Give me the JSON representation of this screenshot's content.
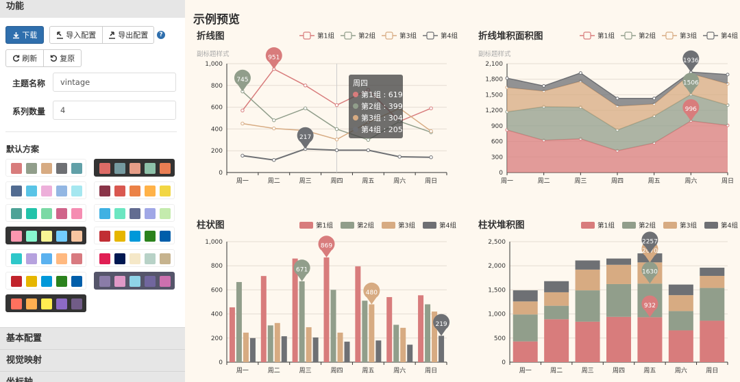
{
  "sidebar": {
    "sections": {
      "func": "功能",
      "basic": "基本配置",
      "visual": "视觉映射",
      "axis": "坐标轴"
    },
    "buttons": {
      "download": "下载",
      "import": "导入配置",
      "export": "导出配置",
      "refresh": "刷新",
      "restore": "复原",
      "help": "?"
    },
    "fields": {
      "theme_name_label": "主题名称",
      "theme_name_value": "vintage",
      "series_count_label": "系列数量",
      "series_count_value": "4"
    },
    "schemes_title": "默认方案",
    "schemes": [
      {
        "style": "light",
        "colors": [
          "#d87c7c",
          "#919e8b",
          "#d7ab82",
          "#6e7074",
          "#61a0a8"
        ]
      },
      {
        "style": "dark",
        "colors": [
          "#dd6b66",
          "#759aa0",
          "#e69d87",
          "#8dc1a9",
          "#ea7e53"
        ]
      },
      {
        "style": "light",
        "colors": [
          "#516b91",
          "#59c4e6",
          "#edafda",
          "#93b7e3",
          "#a5e7f0"
        ]
      },
      {
        "style": "light",
        "colors": [
          "#893448",
          "#d95850",
          "#eb8146",
          "#ffb248",
          "#f2d643"
        ]
      },
      {
        "style": "light",
        "colors": [
          "#4ea397",
          "#22c3aa",
          "#7bd9a5",
          "#d0648a",
          "#f58db2"
        ]
      },
      {
        "style": "light",
        "colors": [
          "#3fb1e3",
          "#6be6c1",
          "#626c91",
          "#a0a7e6",
          "#c4ebad"
        ]
      },
      {
        "style": "dark",
        "colors": [
          "#fc97af",
          "#87f7cf",
          "#f7f494",
          "#72ccff",
          "#f7c5a0"
        ]
      },
      {
        "style": "light",
        "colors": [
          "#c12e34",
          "#e6b600",
          "#0098d9",
          "#2b821d",
          "#005eaa"
        ]
      },
      {
        "style": "light",
        "colors": [
          "#2ec7c9",
          "#b6a2de",
          "#5ab1ef",
          "#ffb980",
          "#d87a80"
        ]
      },
      {
        "style": "light",
        "colors": [
          "#e01f54",
          "#001852",
          "#f5e8c8",
          "#b8d2c7",
          "#c6b38e"
        ]
      },
      {
        "style": "light",
        "colors": [
          "#c1232b",
          "#e6b600",
          "#0098d9",
          "#2b821d",
          "#005eaa"
        ]
      },
      {
        "style": "selected",
        "colors": [
          "#8a7ca8",
          "#e098c7",
          "#8fd3e8",
          "#71669e",
          "#cc70af"
        ]
      },
      {
        "style": "dark",
        "colors": [
          "#ff715e",
          "#ffaf51",
          "#ffee51",
          "#8c6ac4",
          "#715c87"
        ]
      }
    ]
  },
  "main": {
    "title": "示例预览"
  },
  "colors": {
    "s1": "#d87c7c",
    "s2": "#919e8b",
    "s3": "#d7ab82",
    "s4": "#6e7074"
  },
  "legend": [
    "第1组",
    "第2组",
    "第3组",
    "第4组"
  ],
  "tooltip": {
    "title": "周四",
    "rows": [
      {
        "label": "第1组 : 619",
        "color": "#d87c7c"
      },
      {
        "label": "第2组 : 399",
        "color": "#919e8b"
      },
      {
        "label": "第3组 : 304",
        "color": "#d7ab82"
      },
      {
        "label": "第4组 : 205",
        "color": "#6e7074"
      }
    ]
  },
  "chart_data": [
    {
      "id": "line",
      "type": "line",
      "title": "折线图",
      "subtitle": "副标题样式",
      "categories": [
        "周一",
        "周二",
        "周三",
        "周四",
        "周五",
        "周六",
        "周日"
      ],
      "ylim": [
        0,
        1000
      ],
      "yticks": [
        "0",
        "200",
        "400",
        "600",
        "800",
        "1,000"
      ],
      "series": [
        {
          "name": "第1组",
          "values": [
            570,
            951,
            800,
            619,
            760,
            470,
            590
          ]
        },
        {
          "name": "第2组",
          "values": [
            745,
            480,
            590,
            399,
            300,
            470,
            370
          ]
        },
        {
          "name": "第3组",
          "values": [
            450,
            405,
            385,
            304,
            460,
            590,
            380
          ]
        },
        {
          "name": "第4组",
          "values": [
            155,
            115,
            217,
            205,
            205,
            145,
            140
          ]
        }
      ],
      "markers": [
        {
          "label": "951",
          "series": 0,
          "index": 1
        },
        {
          "label": "745",
          "series": 1,
          "index": 0
        },
        {
          "label": "217",
          "series": 3,
          "index": 2
        }
      ]
    },
    {
      "id": "area",
      "type": "area",
      "title": "折线堆积面积图",
      "subtitle": "副标题样式",
      "categories": [
        "周一",
        "周二",
        "周三",
        "周四",
        "周五",
        "周六",
        "周日"
      ],
      "ylim": [
        0,
        2100
      ],
      "yticks": [
        "0",
        "300",
        "600",
        "900",
        "1,200",
        "1,500",
        "1,800",
        "2,100"
      ],
      "series": [
        {
          "name": "第1组",
          "values": [
            820,
            620,
            650,
            420,
            570,
            996,
            910
          ]
        },
        {
          "name": "第2组",
          "values": [
            350,
            650,
            610,
            400,
            520,
            510,
            390
          ]
        },
        {
          "name": "第3组",
          "values": [
            470,
            300,
            500,
            460,
            230,
            400,
            410
          ]
        },
        {
          "name": "第4组",
          "values": [
            180,
            100,
            160,
            150,
            110,
            30,
            180
          ]
        }
      ],
      "markers": [
        {
          "label": "996",
          "series": 0,
          "index": 5
        },
        {
          "label": "1506",
          "series": 1,
          "index": 5
        },
        {
          "label": "1936",
          "series": 3,
          "index": 5
        }
      ]
    },
    {
      "id": "bar",
      "type": "bar",
      "title": "柱状图",
      "categories": [
        "周一",
        "周二",
        "周三",
        "周四",
        "周五",
        "周六",
        "周日"
      ],
      "ylim": [
        0,
        1000
      ],
      "yticks": [
        "0",
        "200",
        "400",
        "600",
        "800",
        "1,000"
      ],
      "series": [
        {
          "name": "第1组",
          "values": [
            455,
            715,
            860,
            869,
            795,
            540,
            555
          ]
        },
        {
          "name": "第2组",
          "values": [
            665,
            305,
            671,
            600,
            510,
            310,
            480
          ]
        },
        {
          "name": "第3组",
          "values": [
            245,
            325,
            290,
            245,
            480,
            285,
            420
          ]
        },
        {
          "name": "第4组",
          "values": [
            200,
            215,
            205,
            170,
            180,
            145,
            219
          ]
        }
      ],
      "markers": [
        {
          "label": "869",
          "series": 0,
          "index": 3
        },
        {
          "label": "671",
          "series": 1,
          "index": 2
        },
        {
          "label": "480",
          "series": 2,
          "index": 4
        },
        {
          "label": "219",
          "series": 3,
          "index": 6
        }
      ]
    },
    {
      "id": "stackbar",
      "type": "bar",
      "title": "柱状堆积图",
      "categories": [
        "周一",
        "周二",
        "周三",
        "周四",
        "周五",
        "周六",
        "周日"
      ],
      "ylim": [
        0,
        2500
      ],
      "yticks": [
        "0",
        "500",
        "1,000",
        "1,500",
        "2,000",
        "2,500"
      ],
      "series": [
        {
          "name": "第1组",
          "values": [
            430,
            890,
            840,
            940,
            932,
            660,
            860
          ]
        },
        {
          "name": "第2组",
          "values": [
            560,
            280,
            650,
            680,
            698,
            400,
            680
          ]
        },
        {
          "name": "第3组",
          "values": [
            270,
            280,
            430,
            400,
            440,
            330,
            250
          ]
        },
        {
          "name": "第4组",
          "values": [
            230,
            230,
            190,
            130,
            187,
            220,
            170
          ]
        }
      ],
      "markers": [
        {
          "label": "932",
          "series": 0,
          "index": 4
        },
        {
          "label": "1630",
          "series": 1,
          "index": 4
        },
        {
          "label": "2070",
          "series": 2,
          "index": 4
        },
        {
          "label": "2257",
          "series": 3,
          "index": 4
        }
      ]
    }
  ]
}
